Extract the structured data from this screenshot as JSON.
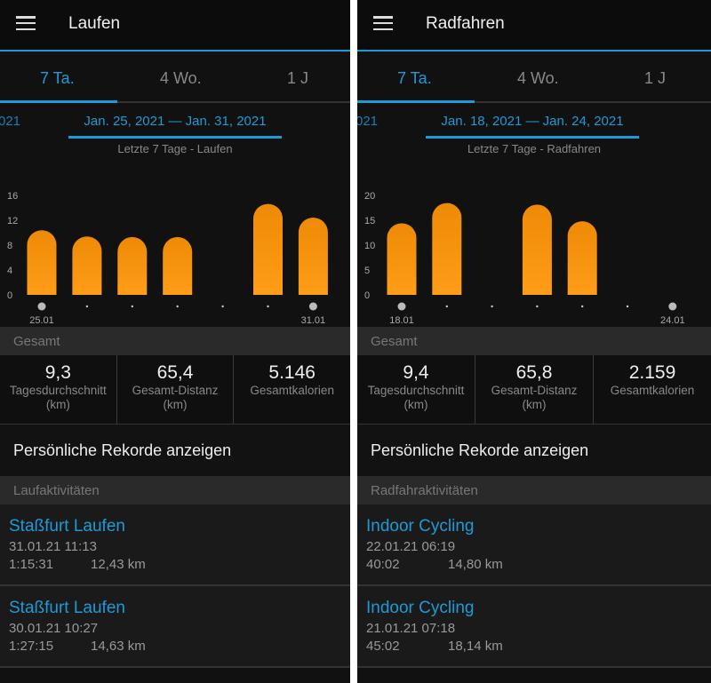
{
  "colors": {
    "accent": "#1e9ad6",
    "bar": "#f7930e",
    "background": "#111111"
  },
  "panels": [
    {
      "menu_icon": "hamburger-icon",
      "title": "Laufen",
      "tabs": [
        {
          "label": "7 Ta.",
          "active": true
        },
        {
          "label": "4 Wo."
        },
        {
          "label": "1 J"
        }
      ],
      "prev_range_fragment": "021",
      "date_range": "Jan. 25, 2021 — Jan. 31, 2021",
      "chart_subtitle": "Letzte 7 Tage - Laufen",
      "summary_header": "Gesamt",
      "stats": [
        {
          "value": "9,3",
          "label": "Tagesdurchschnitt",
          "unit": "(km)"
        },
        {
          "value": "65,4",
          "label": "Gesamt-Distanz",
          "unit": "(km)"
        },
        {
          "value": "5.146",
          "label": "Gesamtkalorien",
          "unit": ""
        }
      ],
      "records_link": "Persönliche Rekorde anzeigen",
      "activities_header": "Laufaktivitäten",
      "activities": [
        {
          "name": "Staßfurt Laufen",
          "datetime": "31.01.21 11:13",
          "duration": "1:15:31",
          "distance": "12,43 km"
        },
        {
          "name": "Staßfurt Laufen",
          "datetime": "30.01.21 10:27",
          "duration": "1:27:15",
          "distance": "14,63 km"
        }
      ]
    },
    {
      "menu_icon": "hamburger-icon",
      "title": "Radfahren",
      "tabs": [
        {
          "label": "7 Ta.",
          "active": true
        },
        {
          "label": "4 Wo."
        },
        {
          "label": "1 J"
        }
      ],
      "prev_range_fragment": "021",
      "date_range": "Jan. 18, 2021 — Jan. 24, 2021",
      "chart_subtitle": "Letzte 7 Tage - Radfahren",
      "summary_header": "Gesamt",
      "stats": [
        {
          "value": "9,4",
          "label": "Tagesdurchschnitt",
          "unit": "(km)"
        },
        {
          "value": "65,8",
          "label": "Gesamt-Distanz",
          "unit": "(km)"
        },
        {
          "value": "2.159",
          "label": "Gesamtkalorien",
          "unit": ""
        }
      ],
      "records_link": "Persönliche Rekorde anzeigen",
      "activities_header": "Radfahraktivitäten",
      "activities": [
        {
          "name": "Indoor Cycling",
          "datetime": "22.01.21 06:19",
          "duration": "40:02",
          "distance": "14,80 km"
        },
        {
          "name": "Indoor Cycling",
          "datetime": "21.01.21 07:18",
          "duration": "45:02",
          "distance": "18,14 km"
        }
      ]
    }
  ],
  "chart_data": [
    {
      "type": "bar",
      "title": "Letzte 7 Tage - Laufen",
      "categories": [
        "25.01",
        "26.01",
        "27.01",
        "28.01",
        "29.01",
        "30.01",
        "31.01"
      ],
      "x_labels_shown": [
        "25.01",
        "31.01"
      ],
      "values": [
        10.4,
        9.4,
        9.3,
        9.3,
        0,
        14.63,
        12.43
      ],
      "yticks": [
        0,
        4,
        8,
        12,
        16
      ],
      "ylim": [
        0,
        16
      ],
      "grid": false
    },
    {
      "type": "bar",
      "title": "Letzte 7 Tage - Radfahren",
      "categories": [
        "18.01",
        "19.01",
        "20.01",
        "21.01",
        "22.01",
        "23.01",
        "24.01"
      ],
      "x_labels_shown": [
        "18.01",
        "24.01"
      ],
      "values": [
        14.4,
        18.46,
        0,
        18.14,
        14.8,
        0,
        0
      ],
      "yticks": [
        0,
        5,
        10,
        15,
        20
      ],
      "ylim": [
        0,
        20
      ],
      "grid": false
    }
  ]
}
